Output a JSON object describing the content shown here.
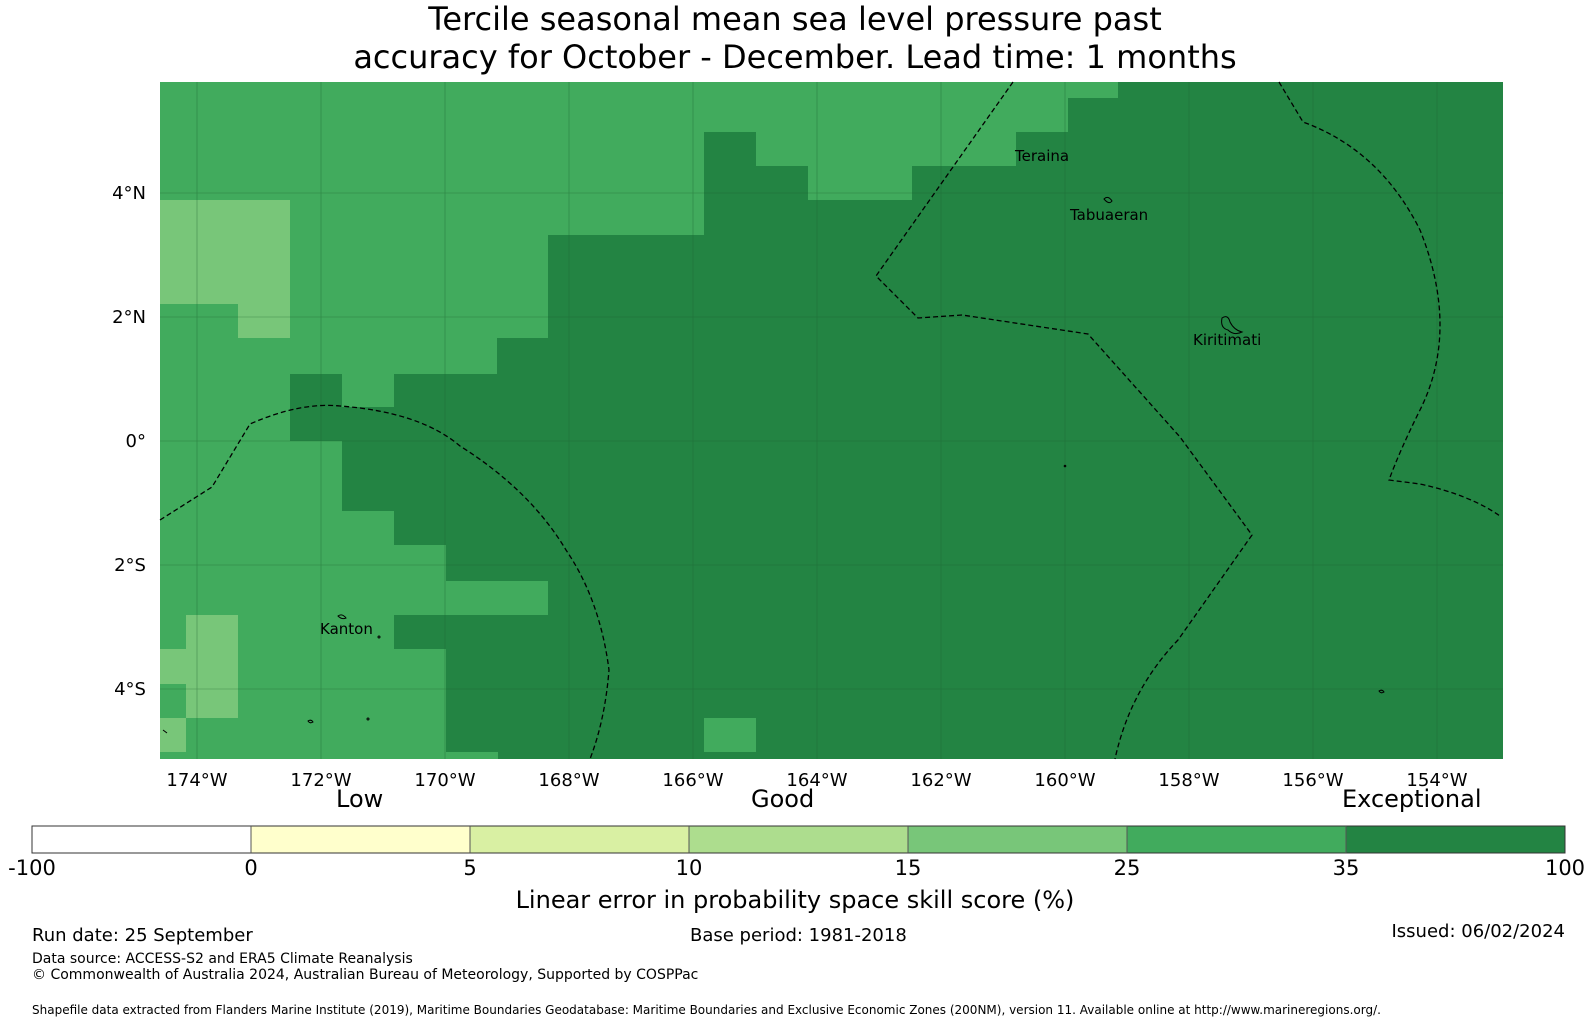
{
  "title": {
    "line1": "Tercile seasonal mean sea level pressure past",
    "line2": "accuracy for October - December. Lead time: 1 months"
  },
  "map": {
    "lon_labels": [
      "174°W",
      "172°W",
      "170°W",
      "168°W",
      "166°W",
      "164°W",
      "162°W",
      "160°W",
      "158°W",
      "156°W",
      "154°W"
    ],
    "lat_labels": [
      "4°N",
      "2°N",
      "0°",
      "2°S",
      "4°S"
    ],
    "places": [
      "Teraina",
      "Tabuaeran",
      "Kiritimati",
      "Kanton"
    ]
  },
  "legend": {
    "categories": [
      "Low",
      "Good",
      "Exceptional"
    ],
    "ticks": [
      "-100",
      "0",
      "5",
      "10",
      "15",
      "25",
      "35",
      "100"
    ],
    "colors": [
      "#ffffff",
      "#ffffcc",
      "#d9f0a3",
      "#addd8e",
      "#78c679",
      "#41ab5d",
      "#238443"
    ],
    "label": "Linear error in probability space skill score (%)"
  },
  "footer": {
    "run_date": "Run date: 25 September",
    "base_period": "Base period: 1981-2018",
    "issued": "Issued: 06/02/2024",
    "data_source": "Data source: ACCESS-S2 and ERA5 Climate Reanalysis",
    "copyright": "© Commonwealth of Australia 2024, Australian Bureau of Meteorology, Supported by COSPPac",
    "shapefile": "Shapefile data extracted from Flanders Marine Institute (2019), Maritime Boundaries Geodatabase: Maritime Boundaries and Exclusive Economic Zones (200NM), version 11. Available online at http://www.marineregions.org/."
  }
}
